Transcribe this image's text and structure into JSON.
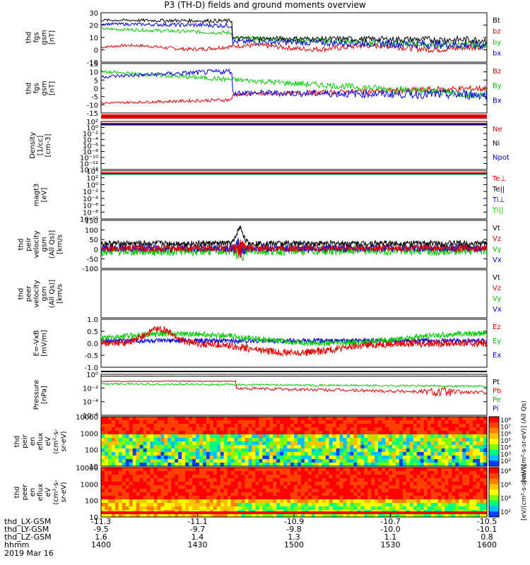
{
  "title": "P3 (TH-D) fields and ground moments overview",
  "date_text": "2019 Mar 16",
  "orbit_labels": [
    "thd_LX-GSM",
    "thd_LY-GSM",
    "thd_LZ-GSM",
    "hhmm"
  ],
  "orbit_values": [
    [
      "-11.3",
      "-11.1",
      "-10.9",
      "-10.7",
      "-10.5"
    ],
    [
      "-9.5",
      "-9.7",
      "-9.8",
      "-10.0",
      "-10.1"
    ],
    [
      "1.6",
      "1.4",
      "1.3",
      "1.1",
      "0.8"
    ],
    [
      "1400",
      "1430",
      "1500",
      "1530",
      "1600"
    ]
  ],
  "colors": {
    "black": "#000000",
    "red": "#e00000",
    "green": "#00cc00",
    "blue": "#0000e0"
  },
  "chart_data": [
    {
      "type": "line",
      "ylabel": [
        "thd",
        "fgs",
        "gsm",
        "[nT]"
      ],
      "ylim": [
        -10,
        30
      ],
      "ticks": [
        "30",
        "20",
        "10",
        "0",
        "-10"
      ],
      "series": [
        {
          "name": "Bt",
          "color": "black"
        },
        {
          "name": "bz",
          "color": "red"
        },
        {
          "name": "by",
          "color": "green"
        },
        {
          "name": "bx",
          "color": "blue"
        }
      ]
    },
    {
      "type": "line",
      "ylabel": [
        "thd",
        "fgs",
        "gsm",
        "[nT]"
      ],
      "ylim": [
        -15,
        15
      ],
      "ticks": [
        "15",
        "10",
        "5",
        "0",
        "-5",
        "-10",
        "-15"
      ],
      "series": [
        {
          "name": "Bz",
          "color": "red"
        },
        {
          "name": "By",
          "color": "green"
        },
        {
          "name": "Bx",
          "color": "blue"
        }
      ]
    },
    {
      "type": "line",
      "ylabel": [
        "Density",
        "[1/cc]",
        "[cm-3]"
      ],
      "scale": "log",
      "ticks": [
        "10²",
        "10⁰",
        "10⁻²",
        "10⁻⁴",
        "10⁻⁶",
        "10⁻⁸",
        "10⁻¹⁰",
        "10⁻¹²",
        "10⁻¹⁴"
      ],
      "series": [
        {
          "name": "Ne",
          "color": "red"
        },
        {
          "name": "Ni",
          "color": "black"
        },
        {
          "name": "Npot",
          "color": "blue"
        }
      ]
    },
    {
      "type": "line",
      "ylabel": [
        "magt3",
        "[eV]"
      ],
      "scale": "log",
      "ticks": [
        "10⁴",
        "10²",
        "10⁰",
        "10⁻²",
        "10⁻⁴",
        "10⁻⁶",
        "10⁻⁸",
        "10⁻¹⁰"
      ],
      "series": [
        {
          "name": "Te⊥",
          "color": "red"
        },
        {
          "name": "Te||",
          "color": "black"
        },
        {
          "name": "Ti⊥",
          "color": "blue"
        },
        {
          "name": "Ti||",
          "color": "green"
        }
      ]
    },
    {
      "type": "line",
      "ylabel": [
        "thd",
        "peir",
        "velocity",
        "gsm",
        "(All Qs)]",
        "[km/s"
      ],
      "ylim": [
        -100,
        150
      ],
      "ticks": [
        "150",
        "100",
        "50",
        "0",
        "-50",
        "-100"
      ],
      "series": [
        {
          "name": "Vt",
          "color": "black"
        },
        {
          "name": "Vz",
          "color": "red"
        },
        {
          "name": "Vy",
          "color": "green"
        },
        {
          "name": "Vx",
          "color": "blue"
        }
      ]
    },
    {
      "type": "line",
      "ylabel": [
        "thd",
        "peer",
        "velocity",
        "gsm",
        "(All Qs)]",
        "[km/s"
      ],
      "series": [
        {
          "name": "Vt",
          "color": "black"
        },
        {
          "name": "Vz",
          "color": "red"
        },
        {
          "name": "Vy",
          "color": "green"
        },
        {
          "name": "Vx",
          "color": "blue"
        }
      ]
    },
    {
      "type": "line",
      "ylabel": [
        "E=-VxB",
        "[mV/m]"
      ],
      "ylim": [
        -1.0,
        1.0
      ],
      "ticks": [
        "1.0",
        "0.5",
        "0.0",
        "-0.5",
        "-1.0"
      ],
      "series": [
        {
          "name": "Ez",
          "color": "red"
        },
        {
          "name": "Ey",
          "color": "green"
        },
        {
          "name": "Ex",
          "color": "blue"
        }
      ]
    },
    {
      "type": "line",
      "ylabel": [
        "Pressure",
        "[nPa]"
      ],
      "scale": "log",
      "ticks": [
        "10⁰",
        "10⁻²",
        "10⁻⁴",
        "10⁻⁶"
      ],
      "series": [
        {
          "name": "Pt",
          "color": "black"
        },
        {
          "name": "Pb",
          "color": "red"
        },
        {
          "name": "Pe",
          "color": "green"
        },
        {
          "name": "Pi",
          "color": "blue"
        }
      ]
    },
    {
      "type": "heatmap",
      "ylabel": [
        "thd",
        "peir",
        "en",
        "eflux",
        "eV",
        "(cm²-s-",
        "sr-eV)"
      ],
      "ticks": [
        "10000",
        "1000",
        "100",
        "10"
      ],
      "scale": "log",
      "colorbar_ticks": [
        "10⁸",
        "10⁷",
        "10⁶",
        "10⁵",
        "10⁴",
        "10³",
        "10²"
      ],
      "colorbar_label": "[eV/(cm²-s-sr-eV)] (All Qs)"
    },
    {
      "type": "heatmap",
      "ylabel": [
        "thd",
        "peer",
        "en",
        "eflux",
        "eV",
        "(cm²-s-",
        "sr-eV)"
      ],
      "ticks": [
        "10000",
        "1000",
        "100",
        "10"
      ],
      "scale": "log",
      "colorbar_ticks": [
        "10⁸",
        "10⁶",
        "10⁴",
        "10²"
      ],
      "colorbar_label": "[eV/(cm²-s-sr-eV)]"
    }
  ]
}
